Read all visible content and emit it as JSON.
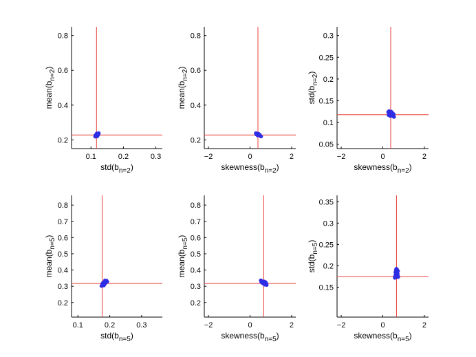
{
  "colors": {
    "axes": "#000000",
    "reference_line": "#e8403a",
    "points": "#2431e8"
  },
  "chart_data": [
    {
      "type": "scatter",
      "xlabel": "std(b",
      "xlabel_sub": "n=2",
      "xlabel_end": ")",
      "ylabel": "mean(b",
      "ylabel_sub": "n=2",
      "ylabel_end": ")",
      "xlim": [
        0.04,
        0.32
      ],
      "ylim": [
        0.15,
        0.85
      ],
      "xticks": [
        {
          "v": 0.1,
          "t": "0.1"
        },
        {
          "v": 0.2,
          "t": "0.2"
        },
        {
          "v": 0.3,
          "t": "0.3"
        }
      ],
      "yticks": [
        {
          "v": 0.2,
          "t": "0.2"
        },
        {
          "v": 0.4,
          "t": "0.4"
        },
        {
          "v": 0.6,
          "t": "0.6"
        },
        {
          "v": 0.8,
          "t": "0.8"
        }
      ],
      "vline": 0.117,
      "hline": 0.228,
      "points": [
        [
          0.113,
          0.219
        ],
        [
          0.115,
          0.223
        ],
        [
          0.117,
          0.226
        ],
        [
          0.119,
          0.229
        ],
        [
          0.121,
          0.232
        ],
        [
          0.123,
          0.235
        ],
        [
          0.116,
          0.23
        ],
        [
          0.12,
          0.224
        ],
        [
          0.118,
          0.237
        ],
        [
          0.122,
          0.228
        ],
        [
          0.114,
          0.227
        ],
        [
          0.124,
          0.238
        ],
        [
          0.119,
          0.22
        ],
        [
          0.117,
          0.233
        ]
      ]
    },
    {
      "type": "scatter",
      "xlabel": "skewness(b",
      "xlabel_sub": "n=2",
      "xlabel_end": ")",
      "ylabel": "mean(b",
      "ylabel_sub": "n=2",
      "ylabel_end": ")",
      "xlim": [
        -2.2,
        2.2
      ],
      "ylim": [
        0.15,
        0.85
      ],
      "xticks": [
        {
          "v": -2,
          "t": "−2"
        },
        {
          "v": 0,
          "t": "0"
        },
        {
          "v": 2,
          "t": "2"
        }
      ],
      "yticks": [
        {
          "v": 0.2,
          "t": "0.2"
        },
        {
          "v": 0.4,
          "t": "0.4"
        },
        {
          "v": 0.6,
          "t": "0.6"
        },
        {
          "v": 0.8,
          "t": "0.8"
        }
      ],
      "vline": 0.38,
      "hline": 0.228,
      "points": [
        [
          0.28,
          0.238
        ],
        [
          0.32,
          0.236
        ],
        [
          0.35,
          0.233
        ],
        [
          0.38,
          0.231
        ],
        [
          0.41,
          0.229
        ],
        [
          0.44,
          0.227
        ],
        [
          0.47,
          0.225
        ],
        [
          0.5,
          0.222
        ],
        [
          0.53,
          0.22
        ],
        [
          0.36,
          0.226
        ],
        [
          0.42,
          0.234
        ],
        [
          0.3,
          0.232
        ],
        [
          0.46,
          0.23
        ],
        [
          0.39,
          0.236
        ]
      ]
    },
    {
      "type": "scatter",
      "xlabel": "skewness(b",
      "xlabel_sub": "n=2",
      "xlabel_end": ")",
      "ylabel": "std(b",
      "ylabel_sub": "n=2",
      "ylabel_end": ")",
      "xlim": [
        -2.2,
        2.2
      ],
      "ylim": [
        0.04,
        0.32
      ],
      "xticks": [
        {
          "v": -2,
          "t": "−2"
        },
        {
          "v": 0,
          "t": "0"
        },
        {
          "v": 2,
          "t": "2"
        }
      ],
      "yticks": [
        {
          "v": 0.05,
          "t": "0.05"
        },
        {
          "v": 0.1,
          "t": "0.1"
        },
        {
          "v": 0.15,
          "t": "0.15"
        },
        {
          "v": 0.2,
          "t": "0.2"
        },
        {
          "v": 0.25,
          "t": "0.25"
        },
        {
          "v": 0.3,
          "t": "0.3"
        }
      ],
      "vline": 0.38,
      "hline": 0.118,
      "points": [
        [
          0.26,
          0.124
        ],
        [
          0.3,
          0.126
        ],
        [
          0.34,
          0.122
        ],
        [
          0.38,
          0.12
        ],
        [
          0.42,
          0.118
        ],
        [
          0.46,
          0.116
        ],
        [
          0.5,
          0.114
        ],
        [
          0.54,
          0.113
        ],
        [
          0.32,
          0.119
        ],
        [
          0.4,
          0.125
        ],
        [
          0.48,
          0.121
        ],
        [
          0.36,
          0.115
        ],
        [
          0.44,
          0.123
        ],
        [
          0.28,
          0.117
        ],
        [
          0.52,
          0.119
        ]
      ]
    },
    {
      "type": "scatter",
      "xlabel": "std(b",
      "xlabel_sub": "n=5",
      "xlabel_end": ")",
      "ylabel": "mean(b",
      "ylabel_sub": "n=5",
      "ylabel_end": ")",
      "xlim": [
        0.08,
        0.365
      ],
      "ylim": [
        0.11,
        0.86
      ],
      "xticks": [
        {
          "v": 0.1,
          "t": "0.1"
        },
        {
          "v": 0.2,
          "t": "0.2"
        },
        {
          "v": 0.3,
          "t": "0.3"
        }
      ],
      "yticks": [
        {
          "v": 0.2,
          "t": "0.2"
        },
        {
          "v": 0.3,
          "t": "0.3"
        },
        {
          "v": 0.4,
          "t": "0.4"
        },
        {
          "v": 0.5,
          "t": "0.5"
        },
        {
          "v": 0.6,
          "t": "0.6"
        },
        {
          "v": 0.7,
          "t": "0.7"
        },
        {
          "v": 0.8,
          "t": "0.8"
        }
      ],
      "vline": 0.176,
      "hline": 0.317,
      "points": [
        [
          0.174,
          0.302
        ],
        [
          0.176,
          0.307
        ],
        [
          0.178,
          0.311
        ],
        [
          0.18,
          0.315
        ],
        [
          0.182,
          0.318
        ],
        [
          0.184,
          0.322
        ],
        [
          0.186,
          0.326
        ],
        [
          0.188,
          0.33
        ],
        [
          0.19,
          0.334
        ],
        [
          0.179,
          0.322
        ],
        [
          0.183,
          0.309
        ],
        [
          0.187,
          0.32
        ],
        [
          0.177,
          0.316
        ],
        [
          0.185,
          0.335
        ],
        [
          0.192,
          0.328
        ],
        [
          0.181,
          0.305
        ]
      ]
    },
    {
      "type": "scatter",
      "xlabel": "skewness(b",
      "xlabel_sub": "n=5",
      "xlabel_end": ")",
      "ylabel": "mean(b",
      "ylabel_sub": "n=5",
      "ylabel_end": ")",
      "xlim": [
        -2.2,
        2.2
      ],
      "ylim": [
        0.11,
        0.86
      ],
      "xticks": [
        {
          "v": -2,
          "t": "−2"
        },
        {
          "v": 0,
          "t": "0"
        },
        {
          "v": 2,
          "t": "2"
        }
      ],
      "yticks": [
        {
          "v": 0.2,
          "t": "0.2"
        },
        {
          "v": 0.3,
          "t": "0.3"
        },
        {
          "v": 0.4,
          "t": "0.4"
        },
        {
          "v": 0.5,
          "t": "0.5"
        },
        {
          "v": 0.6,
          "t": "0.6"
        },
        {
          "v": 0.7,
          "t": "0.7"
        },
        {
          "v": 0.8,
          "t": "0.8"
        }
      ],
      "vline": 0.66,
      "hline": 0.317,
      "points": [
        [
          0.52,
          0.336
        ],
        [
          0.56,
          0.332
        ],
        [
          0.6,
          0.328
        ],
        [
          0.64,
          0.324
        ],
        [
          0.68,
          0.32
        ],
        [
          0.72,
          0.316
        ],
        [
          0.76,
          0.312
        ],
        [
          0.8,
          0.308
        ],
        [
          0.58,
          0.322
        ],
        [
          0.66,
          0.33
        ],
        [
          0.7,
          0.31
        ],
        [
          0.62,
          0.318
        ],
        [
          0.74,
          0.326
        ],
        [
          0.54,
          0.327
        ],
        [
          0.78,
          0.318
        ]
      ]
    },
    {
      "type": "scatter",
      "xlabel": "skewness(b",
      "xlabel_sub": "n=5",
      "xlabel_end": ")",
      "ylabel": "std(b",
      "ylabel_sub": "n=5",
      "ylabel_end": ")",
      "xlim": [
        -2.2,
        2.2
      ],
      "ylim": [
        0.08,
        0.365
      ],
      "xticks": [
        {
          "v": -2,
          "t": "−2"
        },
        {
          "v": 0,
          "t": "0"
        },
        {
          "v": 2,
          "t": "2"
        }
      ],
      "yticks": [
        {
          "v": 0.15,
          "t": "0.15"
        },
        {
          "v": 0.2,
          "t": "0.2"
        },
        {
          "v": 0.25,
          "t": "0.25"
        },
        {
          "v": 0.3,
          "t": "0.3"
        },
        {
          "v": 0.35,
          "t": "0.35"
        }
      ],
      "vline": 0.66,
      "hline": 0.175,
      "points": [
        [
          0.58,
          0.172
        ],
        [
          0.6,
          0.176
        ],
        [
          0.62,
          0.18
        ],
        [
          0.64,
          0.184
        ],
        [
          0.66,
          0.188
        ],
        [
          0.68,
          0.192
        ],
        [
          0.7,
          0.186
        ],
        [
          0.72,
          0.178
        ],
        [
          0.74,
          0.174
        ],
        [
          0.63,
          0.19
        ],
        [
          0.67,
          0.174
        ],
        [
          0.71,
          0.182
        ],
        [
          0.61,
          0.185
        ],
        [
          0.69,
          0.179
        ],
        [
          0.65,
          0.193
        ],
        [
          0.73,
          0.188
        ]
      ]
    }
  ]
}
